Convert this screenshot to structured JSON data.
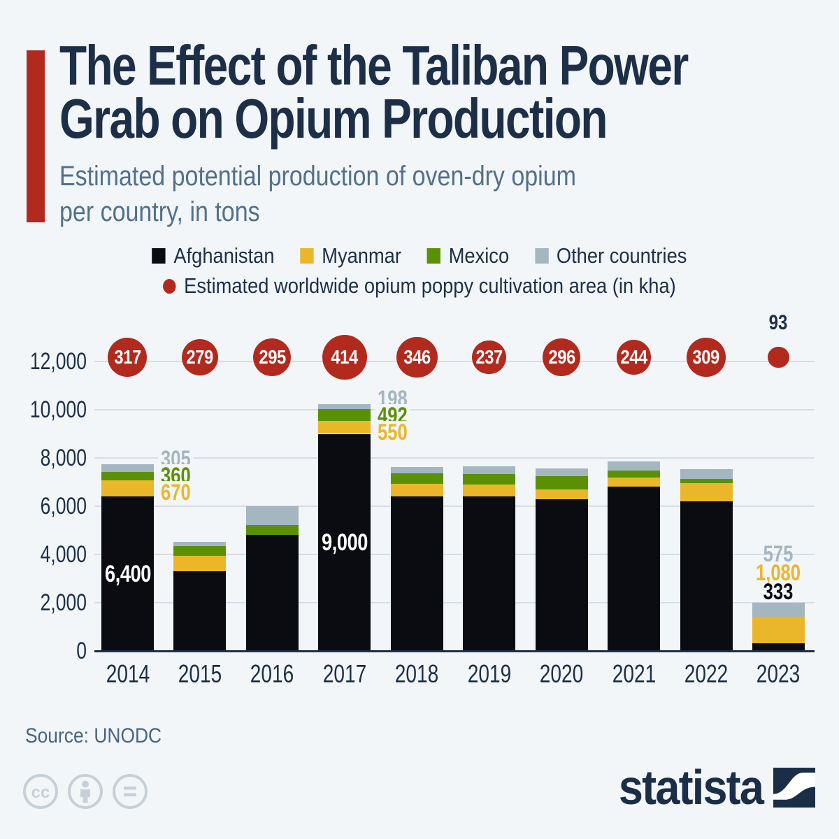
{
  "header": {
    "title_lines": [
      "The Effect of the Taliban Power",
      "Grab on Opium Production"
    ],
    "subtitle_lines": [
      "Estimated potential production of oven-dry opium",
      "per country, in tons"
    ]
  },
  "legend": {
    "series": [
      {
        "label": "Afghanistan",
        "key": "afghanistan"
      },
      {
        "label": "Myanmar",
        "key": "myanmar"
      },
      {
        "label": "Mexico",
        "key": "mexico"
      },
      {
        "label": "Other countries",
        "key": "other"
      }
    ],
    "bubble_label": "Estimated worldwide opium poppy cultivation area (in kha)"
  },
  "colors": {
    "afghanistan": "#0a0c11",
    "myanmar": "#eab72a",
    "mexico": "#5a9104",
    "other": "#a4b6c0",
    "cultivation": "#b2291d",
    "grid": "#d7dde4",
    "axis_line": "#1c2f47"
  },
  "chart_data": {
    "type": "bar",
    "stacked": true,
    "title": "The Effect of the Taliban Power Grab on Opium Production",
    "subtitle": "Estimated potential production of oven-dry opium per country, in tons",
    "unit": "tons",
    "categories": [
      2014,
      2015,
      2016,
      2017,
      2018,
      2019,
      2020,
      2021,
      2022,
      2023
    ],
    "series": [
      {
        "name": "Afghanistan",
        "key": "afghanistan",
        "values": [
          6400,
          3300,
          4800,
          9000,
          6400,
          6400,
          6300,
          6800,
          6200,
          333
        ]
      },
      {
        "name": "Myanmar",
        "key": "myanmar",
        "values": [
          670,
          650,
          0,
          550,
          520,
          510,
          410,
          400,
          770,
          1080
        ]
      },
      {
        "name": "Mexico",
        "key": "mexico",
        "values": [
          360,
          390,
          420,
          492,
          440,
          410,
          540,
          290,
          150,
          0
        ]
      },
      {
        "name": "Other countries",
        "key": "other",
        "values": [
          305,
          190,
          780,
          198,
          260,
          320,
          320,
          370,
          430,
          575
        ]
      }
    ],
    "bubble_series": {
      "name": "Estimated worldwide opium poppy cultivation area (in kha)",
      "unit": "kha",
      "values": [
        317,
        279,
        295,
        414,
        346,
        237,
        296,
        244,
        309,
        93
      ]
    },
    "y_axis": {
      "ticks": [
        0,
        2000,
        4000,
        6000,
        8000,
        10000,
        12000
      ],
      "max": 12000,
      "grid": true
    },
    "annotations": [
      {
        "year": 2014,
        "placement": "inside",
        "series": "afghanistan",
        "value": 6400
      },
      {
        "year": 2014,
        "placement": "right",
        "items": [
          {
            "series": "other",
            "value": 305
          },
          {
            "series": "mexico",
            "value": 360
          },
          {
            "series": "myanmar",
            "value": 670
          }
        ]
      },
      {
        "year": 2017,
        "placement": "inside",
        "series": "afghanistan",
        "value": 9000
      },
      {
        "year": 2017,
        "placement": "right",
        "items": [
          {
            "series": "other",
            "value": 198
          },
          {
            "series": "mexico",
            "value": 492
          },
          {
            "series": "myanmar",
            "value": 550
          }
        ]
      },
      {
        "year": 2023,
        "placement": "above",
        "items": [
          {
            "series": "other",
            "value": 575
          },
          {
            "series": "myanmar",
            "value": 1080
          },
          {
            "series": "afghanistan",
            "value": 333
          }
        ]
      }
    ]
  },
  "footer": {
    "source": "Source: UNODC",
    "brand": "statista"
  }
}
